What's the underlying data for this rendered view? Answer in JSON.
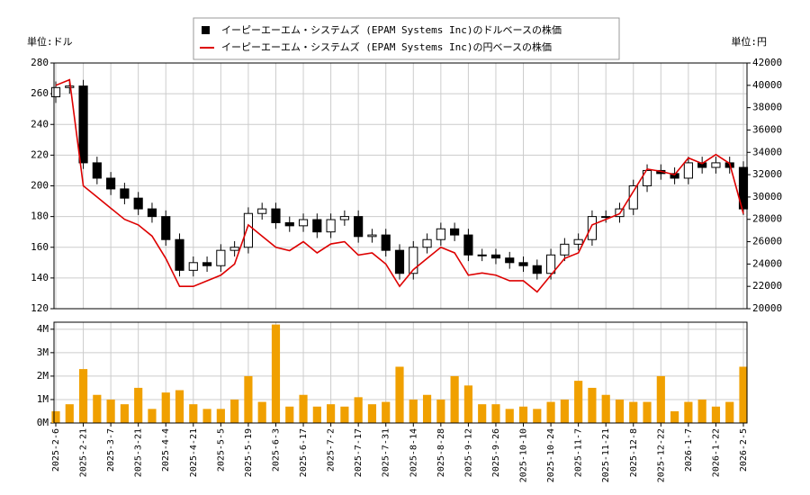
{
  "chart_data": {
    "type": "candlestick",
    "left_unit": "単位:ドル",
    "right_unit": "単位:円",
    "categories": [
      "2025-2-6",
      null,
      "2025-2-21",
      null,
      "2025-3-7",
      null,
      "2025-3-21",
      null,
      "2025-4-4",
      null,
      "2025-4-21",
      null,
      "2025-5-5",
      null,
      "2025-5-19",
      null,
      "2025-6-3",
      null,
      "2025-6-17",
      null,
      "2025-7-2",
      null,
      "2025-7-17",
      null,
      "2025-7-31",
      null,
      "2025-8-14",
      null,
      "2025-8-28",
      null,
      "2025-9-12",
      null,
      "2025-9-26",
      null,
      "2025-10-10",
      null,
      "2025-10-24",
      null,
      "2025-11-7",
      null,
      "2025-11-21",
      null,
      "2025-12-8",
      null,
      "2025-12-22",
      null,
      "2026-1-7",
      null,
      "2026-1-22",
      null,
      "2026-2-5"
    ],
    "series": [
      {
        "name": "イーピーエーエム・システムズ (EPAM Systems Inc)のドルベースの株価",
        "color": "#000000",
        "open": [
          258,
          264,
          265,
          215,
          205,
          198,
          192,
          185,
          180,
          165,
          145,
          150,
          148,
          158,
          160,
          182,
          185,
          176,
          174,
          178,
          170,
          178,
          180,
          167,
          168,
          158,
          143,
          160,
          165,
          172,
          168,
          155,
          155,
          153,
          150,
          148,
          143,
          155,
          162,
          165,
          180,
          180,
          185,
          200,
          210,
          208,
          205,
          215,
          212,
          215,
          212
        ],
        "high": [
          268,
          269,
          269,
          219,
          209,
          202,
          196,
          189,
          184,
          169,
          154,
          154,
          162,
          164,
          186,
          189,
          189,
          180,
          182,
          182,
          182,
          184,
          184,
          172,
          172,
          162,
          164,
          169,
          176,
          176,
          172,
          159,
          159,
          157,
          154,
          152,
          159,
          166,
          169,
          184,
          184,
          189,
          204,
          214,
          214,
          212,
          219,
          219,
          219,
          219,
          216
        ],
        "low": [
          254,
          260,
          211,
          201,
          194,
          188,
          181,
          176,
          161,
          141,
          141,
          144,
          144,
          154,
          156,
          178,
          172,
          170,
          170,
          166,
          166,
          174,
          163,
          163,
          154,
          139,
          139,
          156,
          161,
          164,
          151,
          151,
          149,
          146,
          144,
          139,
          139,
          151,
          158,
          161,
          176,
          176,
          181,
          196,
          204,
          201,
          201,
          208,
          208,
          208,
          181
        ],
        "close": [
          264,
          265,
          215,
          205,
          198,
          192,
          185,
          180,
          165,
          145,
          150,
          148,
          158,
          160,
          182,
          185,
          176,
          174,
          178,
          170,
          178,
          180,
          167,
          168,
          158,
          143,
          160,
          165,
          172,
          168,
          155,
          155,
          153,
          150,
          148,
          143,
          155,
          162,
          165,
          180,
          180,
          185,
          200,
          210,
          208,
          205,
          215,
          212,
          215,
          212,
          185
        ]
      },
      {
        "name": "イーピーエーエム・システムズ (EPAM Systems Inc)の円ベースの株価",
        "color": "#dd0000",
        "axis": "y2",
        "values": [
          40000,
          40500,
          31000,
          30000,
          29000,
          28000,
          27500,
          26500,
          24500,
          22000,
          22000,
          22500,
          23000,
          24000,
          27500,
          26500,
          25500,
          25200,
          26000,
          25000,
          25800,
          26000,
          24800,
          25000,
          24000,
          22000,
          23500,
          24500,
          25500,
          25000,
          23000,
          23200,
          23000,
          22500,
          22500,
          21500,
          23000,
          24500,
          25000,
          27500,
          28000,
          28500,
          30500,
          32500,
          32300,
          32000,
          33500,
          33000,
          33800,
          33000,
          28500
        ]
      },
      {
        "color": "#f0a000",
        "axis": "volume",
        "values": [
          500000,
          800000,
          2300000,
          1200000,
          1000000,
          800000,
          1500000,
          600000,
          1300000,
          1400000,
          800000,
          600000,
          600000,
          1000000,
          2000000,
          900000,
          4200000,
          700000,
          1200000,
          700000,
          800000,
          700000,
          1100000,
          800000,
          900000,
          2400000,
          1000000,
          1200000,
          1000000,
          2000000,
          1600000,
          800000,
          800000,
          600000,
          700000,
          600000,
          900000,
          1000000,
          1800000,
          1500000,
          1200000,
          1000000,
          900000,
          900000,
          2000000,
          500000,
          900000,
          1000000,
          700000,
          900000,
          2400000
        ]
      }
    ],
    "ylim": [
      120,
      280
    ],
    "yticks": [
      120,
      140,
      160,
      180,
      200,
      220,
      240,
      260,
      280
    ],
    "y2lim": [
      20000,
      42000
    ],
    "y2ticks": [
      20000,
      22000,
      24000,
      26000,
      28000,
      30000,
      32000,
      34000,
      36000,
      38000,
      40000,
      42000
    ],
    "vlim": [
      0,
      4300000
    ],
    "vticks": [
      {
        "value": 0,
        "label": "0M"
      },
      {
        "value": 1000000,
        "label": "1M"
      },
      {
        "value": 2000000,
        "label": "2M"
      },
      {
        "value": 3000000,
        "label": "3M"
      },
      {
        "value": 4000000,
        "label": "4M"
      }
    ],
    "grid": true
  }
}
